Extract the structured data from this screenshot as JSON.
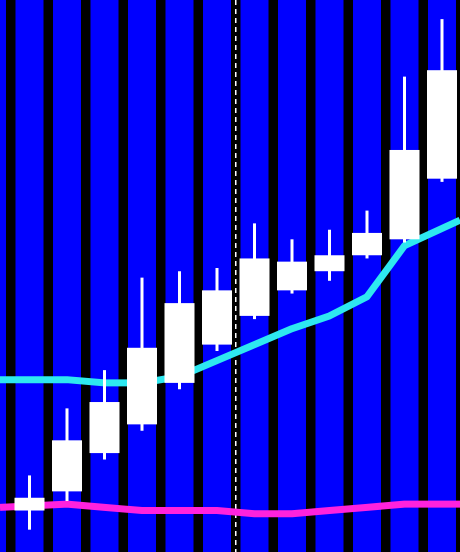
{
  "chart_data": {
    "type": "candlestick",
    "x": [
      1,
      2,
      3,
      4,
      5,
      6,
      7,
      8,
      9,
      10,
      11,
      12
    ],
    "candles": [
      {
        "open": 13,
        "close": 17,
        "high": 24,
        "low": 7
      },
      {
        "open": 19,
        "close": 35,
        "high": 45,
        "low": 16
      },
      {
        "open": 31,
        "close": 47,
        "high": 57,
        "low": 29
      },
      {
        "open": 40,
        "close": 64,
        "high": 86,
        "low": 38
      },
      {
        "open": 53,
        "close": 78,
        "high": 88,
        "low": 51
      },
      {
        "open": 65,
        "close": 82,
        "high": 89,
        "low": 63
      },
      {
        "open": 74,
        "close": 92,
        "high": 103,
        "low": 73
      },
      {
        "open": 82,
        "close": 91,
        "high": 98,
        "low": 81
      },
      {
        "open": 88,
        "close": 93,
        "high": 101,
        "low": 85
      },
      {
        "open": 93,
        "close": 100,
        "high": 107,
        "low": 92
      },
      {
        "open": 98,
        "close": 126,
        "high": 149,
        "low": 97
      },
      {
        "open": 117,
        "close": 151,
        "high": 167,
        "low": 116
      }
    ],
    "series": [
      {
        "name": "",
        "color": "#2ee8f0",
        "values": [
          54,
          54,
          53,
          53,
          55,
          60,
          65,
          70,
          74,
          80,
          96,
          104
        ]
      },
      {
        "name": "",
        "color": "#ff22dd",
        "values": [
          14,
          15,
          14,
          13,
          13,
          13,
          12,
          12,
          13,
          14,
          15,
          15
        ]
      }
    ],
    "ylim": [
      0,
      173
    ],
    "grid": false,
    "vline_x": 6,
    "colors": {
      "band_a": "#0000ff",
      "band_b": "#000000",
      "candle": "#ffffff",
      "vline": "#ffffff"
    }
  }
}
